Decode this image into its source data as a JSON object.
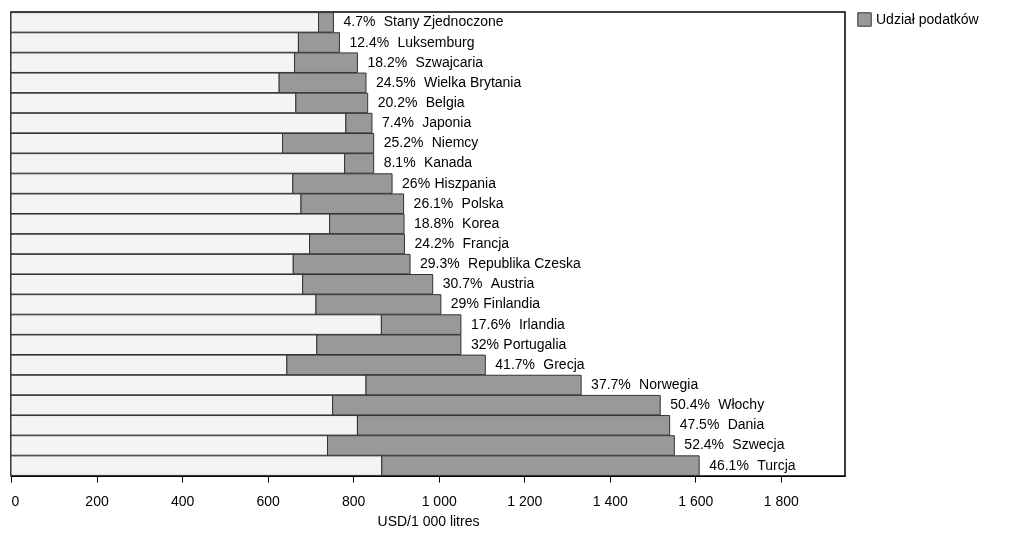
{
  "chart_data": {
    "type": "bar",
    "orientation": "horizontal",
    "stacked": true,
    "categories": [
      "Stany Zjednoczone",
      "Luksemburg",
      "Szwajcaria",
      "Wielka Brytania",
      "Belgia",
      "Japonia",
      "Niemcy",
      "Kanada",
      "Hiszpania",
      "Polska",
      "Korea",
      "Francja",
      "Republika Czeska",
      "Austria",
      "Finlandia",
      "Irlandia",
      "Portugalia",
      "Grecja",
      "Norwegia",
      "Włochy",
      "Dania",
      "Szwecja",
      "Turcja"
    ],
    "series": [
      {
        "color": "#f4f4f4",
        "values": [
          719,
          672,
          663,
          627,
          666,
          783,
          635,
          780,
          659,
          678,
          745,
          698,
          660,
          682,
          713,
          866,
          715,
          645,
          830,
          752,
          810,
          740,
          867
        ]
      },
      {
        "name": "Udział podatków",
        "color": "#999999",
        "values": [
          35,
          96,
          147,
          203,
          168,
          61,
          213,
          68,
          232,
          240,
          174,
          222,
          273,
          304,
          292,
          186,
          337,
          464,
          503,
          766,
          730,
          811,
          742
        ]
      }
    ],
    "annotations": [
      {
        "text": "4.7%",
        "x": 754,
        "y": "Stany Zjednoczone"
      },
      {
        "text": "12.4%",
        "x": 768,
        "y": "Luksemburg"
      },
      {
        "text": "18.2%",
        "x": 810,
        "y": "Szwajcaria"
      },
      {
        "text": "24.5%",
        "x": 830,
        "y": "Wielka Brytania"
      },
      {
        "text": "20.2%",
        "x": 834,
        "y": "Belgia"
      },
      {
        "text": "7.4%",
        "x": 844,
        "y": "Japonia"
      },
      {
        "text": "25.2%",
        "x": 848,
        "y": "Niemcy"
      },
      {
        "text": "8.1%",
        "x": 848,
        "y": "Kanada"
      },
      {
        "text": "26%",
        "x": 891,
        "y": "Hiszpania"
      },
      {
        "text": "26.1%",
        "x": 918,
        "y": "Polska"
      },
      {
        "text": "18.8%",
        "x": 919,
        "y": "Korea"
      },
      {
        "text": "24.2%",
        "x": 920,
        "y": "Francja"
      },
      {
        "text": "29.3%",
        "x": 933,
        "y": "Republika Czeska"
      },
      {
        "text": "30.7%",
        "x": 986,
        "y": "Austria"
      },
      {
        "text": "29%",
        "x": 1005,
        "y": "Finlandia"
      },
      {
        "text": "17.6%",
        "x": 1052,
        "y": "Irlandia"
      },
      {
        "text": "32%",
        "x": 1052,
        "y": "Portugalia"
      },
      {
        "text": "41.7%",
        "x": 1109,
        "y": "Grecja"
      },
      {
        "text": "37.7%",
        "x": 1333,
        "y": "Norwegia"
      },
      {
        "text": "50.4%",
        "x": 1518,
        "y": "Włochy"
      },
      {
        "text": "47.5%",
        "x": 1540,
        "y": "Dania"
      },
      {
        "text": "52.4%",
        "x": 1551,
        "y": "Szwecja"
      },
      {
        "text": "46.1%",
        "x": 1609,
        "y": "Turcja"
      }
    ],
    "xlabel": "USD/1 000 litres",
    "xlim": [
      0,
      1950
    ],
    "xticks": [
      0,
      200,
      400,
      600,
      800,
      {
        "value": 1000,
        "label": "1 000"
      },
      {
        "value": 1200,
        "label": "1 200"
      },
      {
        "value": 1400,
        "label": "1 400"
      },
      {
        "value": 1600,
        "label": "1 600"
      },
      {
        "value": 1800,
        "label": "1 800"
      }
    ],
    "tick_labels": "x",
    "legend": "top right",
    "grid": false
  }
}
